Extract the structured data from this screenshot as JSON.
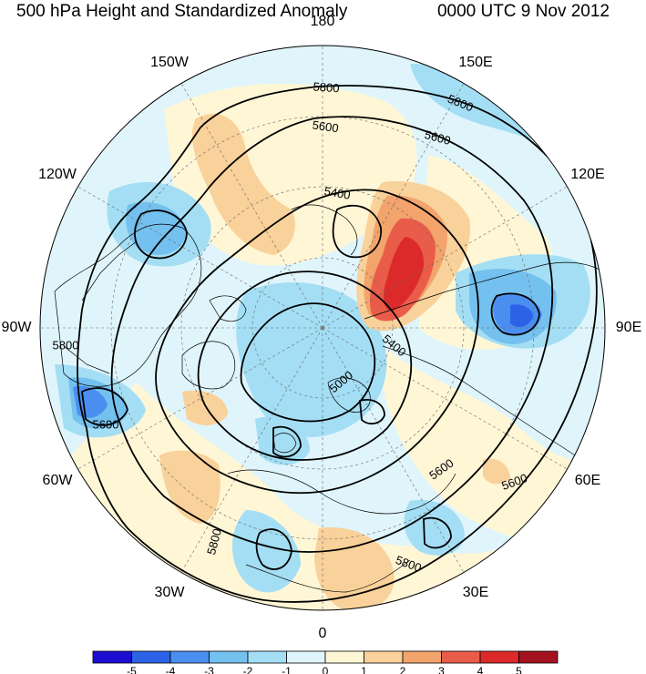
{
  "title_left": "500 hPa Height and Standardized Anomaly",
  "title_right": "0000 UTC 9 Nov 2012",
  "longitude_labels": [
    {
      "name": "lon-label-180",
      "text": "180",
      "lon": 180
    },
    {
      "name": "lon-label-150e",
      "text": "150E",
      "lon": 150
    },
    {
      "name": "lon-label-120e",
      "text": "120E",
      "lon": 120
    },
    {
      "name": "lon-label-90e",
      "text": "90E",
      "lon": 90
    },
    {
      "name": "lon-label-60e",
      "text": "60E",
      "lon": 60
    },
    {
      "name": "lon-label-30e",
      "text": "30E",
      "lon": 30
    },
    {
      "name": "lon-label-0",
      "text": "0",
      "lon": 0
    },
    {
      "name": "lon-label-30w",
      "text": "30W",
      "lon": -30
    },
    {
      "name": "lon-label-60w",
      "text": "60W",
      "lon": -60
    },
    {
      "name": "lon-label-90w",
      "text": "90W",
      "lon": -90
    },
    {
      "name": "lon-label-120w",
      "text": "120W",
      "lon": -120
    },
    {
      "name": "lon-label-150w",
      "text": "150W",
      "lon": -150
    }
  ],
  "contour_labels": [
    "5800",
    "5800",
    "5600",
    "5600",
    "5400",
    "5400",
    "5000",
    "5600",
    "5600",
    "5800",
    "5800",
    "5800",
    "5600"
  ],
  "colorbar": {
    "colors": [
      "#1c0fd1",
      "#2c63e6",
      "#4a8ff0",
      "#74c0ee",
      "#a4def4",
      "#dff5fb",
      "#fff6d6",
      "#f9d19a",
      "#f2a46c",
      "#ea5c4a",
      "#dc2a2a",
      "#a3121e"
    ],
    "tick_labels": [
      "-5",
      "-4",
      "-3",
      "-2",
      "-1",
      "0",
      "1",
      "2",
      "3",
      "4",
      "5"
    ]
  }
}
